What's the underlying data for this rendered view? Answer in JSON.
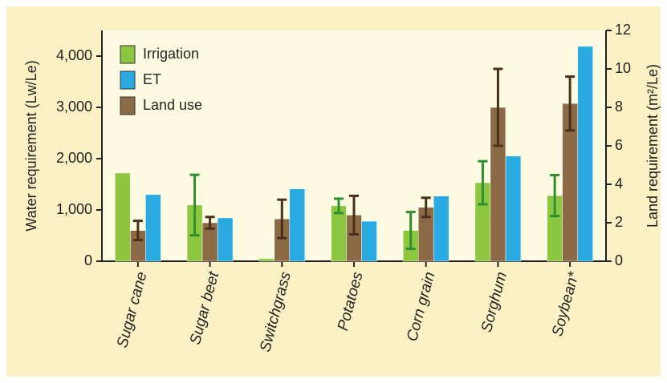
{
  "chart_data": {
    "type": "bar",
    "categories": [
      "Sugar cane",
      "Sugar beet",
      "Switchgrass",
      "Potatoes",
      "Corn grain",
      "Sorghum",
      "Soybean*"
    ],
    "ylabel": "Water requirement (Lw/Le)",
    "y2label": "Land requirement (m²/Le)",
    "ylim": [
      0,
      4500
    ],
    "yticks": [
      0,
      {
        "value": 1000,
        "label": "1,000"
      },
      {
        "value": 2000,
        "label": "2,000"
      },
      {
        "value": 3000,
        "label": "3,000"
      },
      {
        "value": 4000,
        "label": "4,000"
      }
    ],
    "y2lim": [
      0,
      12
    ],
    "y2ticks": [
      0,
      2,
      4,
      6,
      8,
      10,
      12
    ],
    "legend": "upper left",
    "series": [
      {
        "name": "Irrigation",
        "color": "#8dc63f",
        "error_color": "#2f8f2f",
        "values": [
          1720,
          1095,
          50,
          1080,
          600,
          1530,
          1280
        ],
        "errors": [
          null,
          590,
          null,
          140,
          360,
          420,
          400
        ]
      },
      {
        "name": "ET",
        "color": "#29abe2",
        "values": [
          1300,
          845,
          1410,
          780,
          1270,
          2050,
          4190
        ]
      },
      {
        "name": "Land use",
        "color": "#8b6a45",
        "error_color": "#4a3018",
        "axis": "y2",
        "values": [
          1.6,
          2.0,
          2.2,
          2.4,
          2.8,
          8.0,
          8.2
        ],
        "errors": [
          0.5,
          0.3,
          1.0,
          1.0,
          0.5,
          2.0,
          1.4
        ]
      }
    ]
  }
}
